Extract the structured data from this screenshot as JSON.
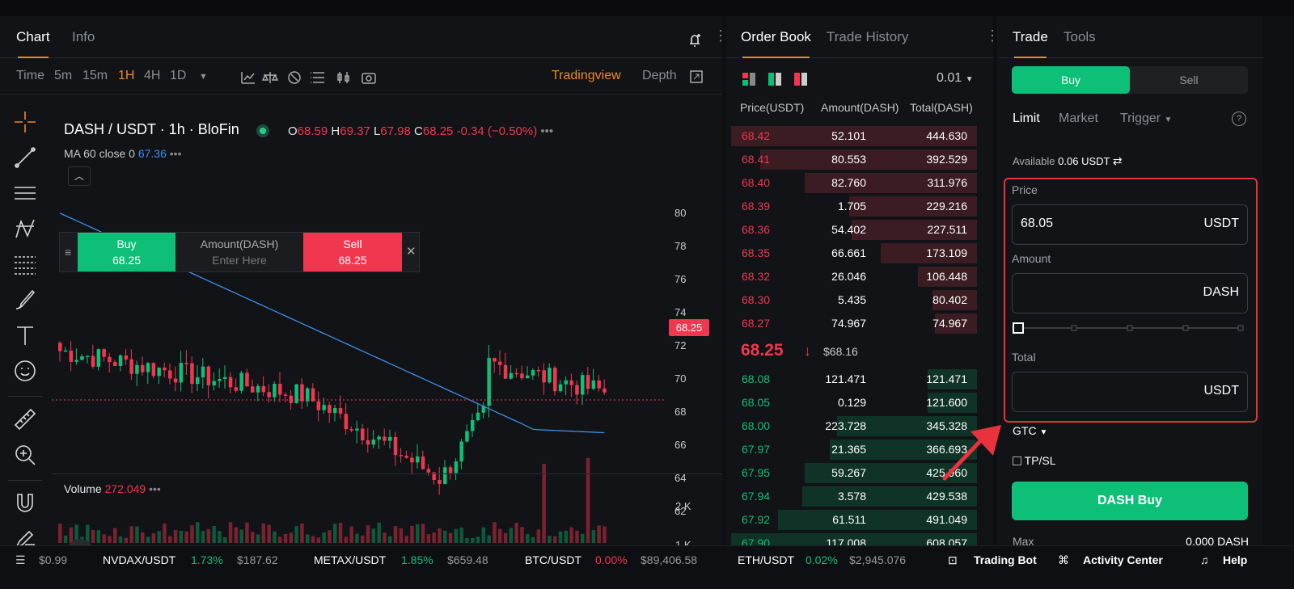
{
  "chart_panel": {
    "tabs": [
      "Chart",
      "Info"
    ],
    "timeframes": [
      "Time",
      "5m",
      "15m",
      "1H",
      "4H",
      "1D"
    ],
    "active_timeframe": "1H",
    "view_options": [
      "Tradingview",
      "Depth"
    ],
    "symbol_title": "DASH / USDT · 1h · BloFin",
    "ohlc": {
      "o_label": "O",
      "o": "68.59",
      "h_label": "H",
      "h": "69.37",
      "l_label": "L",
      "l": "67.98",
      "c_label": "C",
      "c": "68.25",
      "change": "-0.34 (−0.50%)"
    },
    "ma_label": "MA 60 close 0",
    "ma_value": "67.36",
    "quick_trade": {
      "buy_label": "Buy",
      "buy_price": "68.25",
      "amount_label": "Amount(DASH)",
      "amount_placeholder": "Enter Here",
      "sell_label": "Sell",
      "sell_price": "68.25"
    },
    "price_axis": [
      "80",
      "78",
      "76",
      "74",
      "72",
      "70",
      "68",
      "66",
      "64",
      "62"
    ],
    "last_price_tag": "68.25",
    "volume_label": "Volume",
    "volume_value": "272.049",
    "volume_axis": [
      "2 K",
      "1 K"
    ]
  },
  "order_book": {
    "tabs": [
      "Order Book",
      "Trade History"
    ],
    "precision": "0.01",
    "headers": [
      "Price(USDT)",
      "Amount(DASH)",
      "Total(DASH)"
    ],
    "asks": [
      {
        "price": "68.42",
        "amount": "52.101",
        "total": "444.630",
        "depth": 1.0
      },
      {
        "price": "68.41",
        "amount": "80.553",
        "total": "392.529",
        "depth": 0.88
      },
      {
        "price": "68.40",
        "amount": "82.760",
        "total": "311.976",
        "depth": 0.7
      },
      {
        "price": "68.39",
        "amount": "1.705",
        "total": "229.216",
        "depth": 0.52
      },
      {
        "price": "68.36",
        "amount": "54.402",
        "total": "227.511",
        "depth": 0.51
      },
      {
        "price": "68.35",
        "amount": "66.661",
        "total": "173.109",
        "depth": 0.39
      },
      {
        "price": "68.32",
        "amount": "26.046",
        "total": "106.448",
        "depth": 0.24
      },
      {
        "price": "68.30",
        "amount": "5.435",
        "total": "80.402",
        "depth": 0.18
      },
      {
        "price": "68.27",
        "amount": "74.967",
        "total": "74.967",
        "depth": 0.17
      }
    ],
    "mid_price": "68.25",
    "mid_usd": "$68.16",
    "bids": [
      {
        "price": "68.08",
        "amount": "121.471",
        "total": "121.471",
        "depth": 0.2
      },
      {
        "price": "68.05",
        "amount": "0.129",
        "total": "121.600",
        "depth": 0.2
      },
      {
        "price": "68.00",
        "amount": "223.728",
        "total": "345.328",
        "depth": 0.57
      },
      {
        "price": "67.97",
        "amount": "21.365",
        "total": "366.693",
        "depth": 0.6
      },
      {
        "price": "67.95",
        "amount": "59.267",
        "total": "425.960",
        "depth": 0.7
      },
      {
        "price": "67.94",
        "amount": "3.578",
        "total": "429.538",
        "depth": 0.71
      },
      {
        "price": "67.92",
        "amount": "61.511",
        "total": "491.049",
        "depth": 0.81
      },
      {
        "price": "67.90",
        "amount": "117.008",
        "total": "608.057",
        "depth": 1.0
      }
    ]
  },
  "trade_panel": {
    "tabs": [
      "Trade",
      "Tools"
    ],
    "buy_tab": "Buy",
    "sell_tab": "Sell",
    "order_types": [
      "Limit",
      "Market",
      "Trigger"
    ],
    "available_label": "Available",
    "available_value": "0.06 USDT",
    "price_label": "Price",
    "price_value": "68.05",
    "price_unit": "USDT",
    "amount_label": "Amount",
    "amount_unit": "DASH",
    "total_label": "Total",
    "total_unit": "USDT",
    "tif": "GTC",
    "tpsl_label": "TP/SL",
    "submit_label": "DASH Buy",
    "max_label": "Max",
    "max_value": "0.000 DASH",
    "colors": {
      "buy": "#0ebf78",
      "sell": "#f0374f",
      "highlight": "#e8323c"
    }
  },
  "ticker": [
    {
      "pair": "",
      "change": "",
      "price": "$0.99"
    },
    {
      "pair": "NVDAX/USDT",
      "change": "1.73%",
      "price": "$187.62"
    },
    {
      "pair": "METAX/USDT",
      "change": "1.85%",
      "price": "$659.48"
    },
    {
      "pair": "BTC/USDT",
      "change": "0.00%",
      "price": "$89,406.58"
    },
    {
      "pair": "ETH/USDT",
      "change": "0.02%",
      "price": "$2,945.076"
    }
  ],
  "footer_links": [
    "Trading Bot",
    "Activity Center",
    "Help"
  ]
}
